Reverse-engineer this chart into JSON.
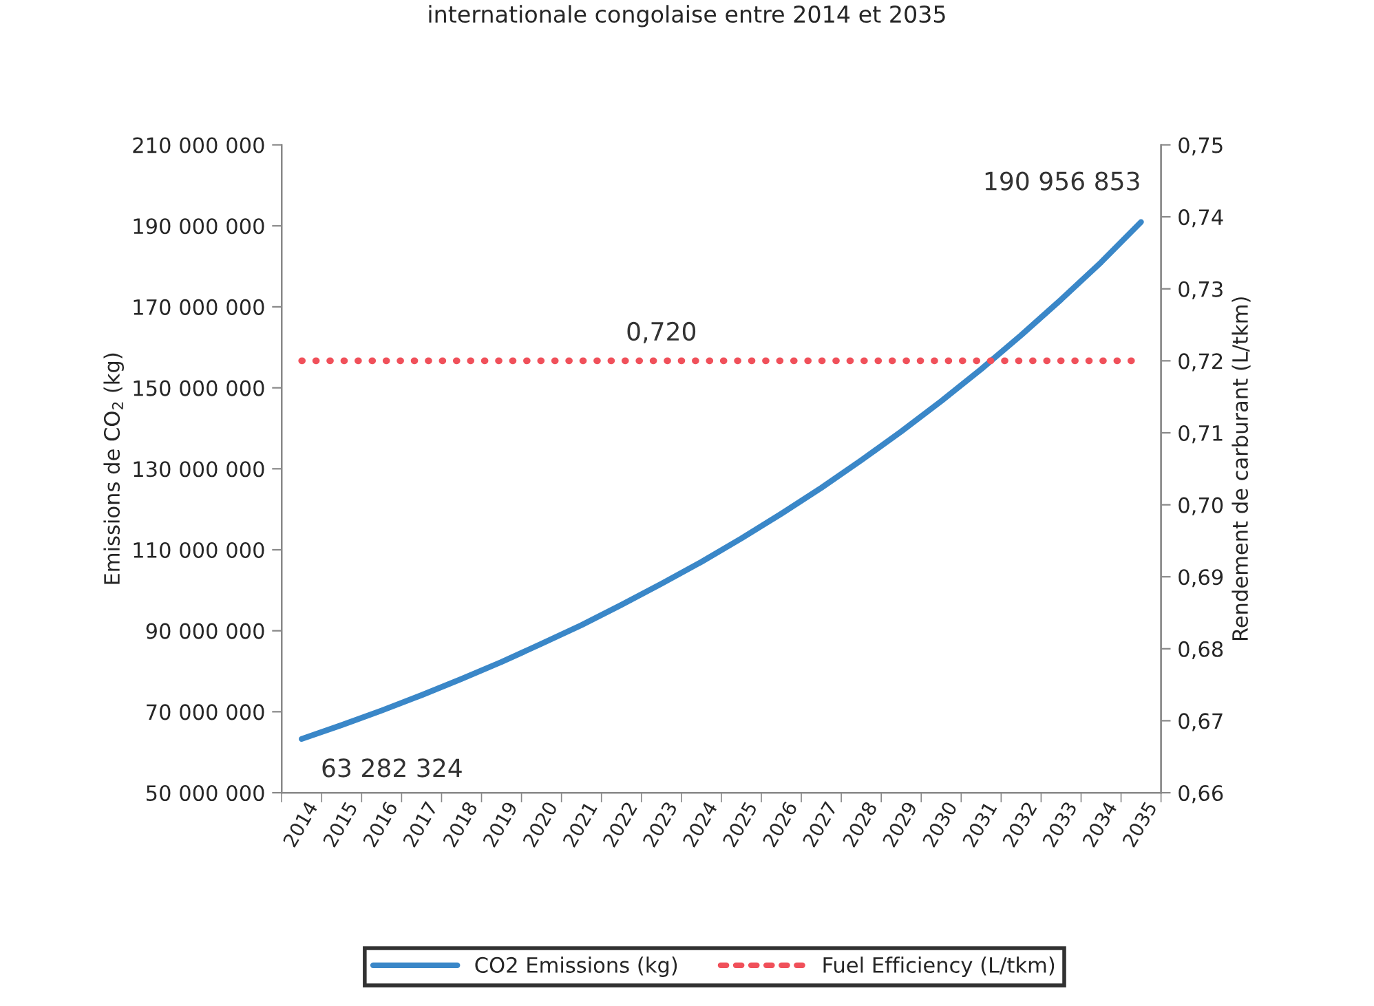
{
  "chart_data": {
    "type": "line",
    "title": "internationale congolaise entre 2014 et 2035",
    "categories": [
      "2014",
      "2015",
      "2016",
      "2017",
      "2018",
      "2019",
      "2020",
      "2021",
      "2022",
      "2023",
      "2024",
      "2025",
      "2026",
      "2027",
      "2028",
      "2029",
      "2030",
      "2031",
      "2032",
      "2033",
      "2034",
      "2035"
    ],
    "series": [
      {
        "name": "CO2 Emissions (kg)",
        "color": "#3a87c8",
        "line_style": "solid",
        "values": [
          63282324,
          66700000,
          70300000,
          74100000,
          78100000,
          82300000,
          86800000,
          91400000,
          96400000,
          101600000,
          107000000,
          112800000,
          118900000,
          125300000,
          132100000,
          139200000,
          146700000,
          154600000,
          163000000,
          171800000,
          181000000,
          190956853
        ],
        "value_labels": [
          "63 282 324",
          null,
          null,
          null,
          null,
          null,
          null,
          null,
          null,
          null,
          null,
          null,
          null,
          null,
          null,
          null,
          null,
          null,
          null,
          null,
          null,
          "190 956 853"
        ]
      },
      {
        "name": "Fuel Efficiency (L/tkm)",
        "color": "#f0505a",
        "axis": "y2",
        "line_style": "dotted",
        "values": [
          0.72,
          0.72,
          0.72,
          0.72,
          0.72,
          0.72,
          0.72,
          0.72,
          0.72,
          0.72,
          0.72,
          0.72,
          0.72,
          0.72,
          0.72,
          0.72,
          0.72,
          0.72,
          0.72,
          0.72,
          0.72,
          0.72
        ],
        "value_labels": [
          null,
          null,
          null,
          null,
          null,
          null,
          null,
          null,
          null,
          "0,720",
          null,
          null,
          null,
          null,
          null,
          null,
          null,
          null,
          null,
          null,
          null,
          null
        ]
      }
    ],
    "ylabel": "Emissions de CO$_{2}$ (kg)",
    "y2label": "Rendement de carburant (L/tkm)",
    "ylim": [
      50000000,
      210000000
    ],
    "yticks": [
      {
        "value": 50000000,
        "label": "50 000 000"
      },
      {
        "value": 70000000,
        "label": "70 000 000"
      },
      {
        "value": 90000000,
        "label": "90 000 000"
      },
      {
        "value": 110000000,
        "label": "110 000 000"
      },
      {
        "value": 130000000,
        "label": "130 000 000"
      },
      {
        "value": 150000000,
        "label": "150 000 000"
      },
      {
        "value": 170000000,
        "label": "170 000 000"
      },
      {
        "value": 190000000,
        "label": "190 000 000"
      },
      {
        "value": 210000000,
        "label": "210 000 000"
      }
    ],
    "y2lim": [
      0.66,
      0.75
    ],
    "y2ticks": [
      {
        "value": 0.66,
        "label": "0,66"
      },
      {
        "value": 0.67,
        "label": "0,67"
      },
      {
        "value": 0.68,
        "label": "0,68"
      },
      {
        "value": 0.69,
        "label": "0,69"
      },
      {
        "value": 0.7,
        "label": "0,70"
      },
      {
        "value": 0.71,
        "label": "0,71"
      },
      {
        "value": 0.72,
        "label": "0,72"
      },
      {
        "value": 0.73,
        "label": "0,73"
      },
      {
        "value": 0.74,
        "label": "0,74"
      },
      {
        "value": 0.75,
        "label": "0,75"
      }
    ],
    "grid": false,
    "legend": "bottom",
    "marker": "none"
  }
}
